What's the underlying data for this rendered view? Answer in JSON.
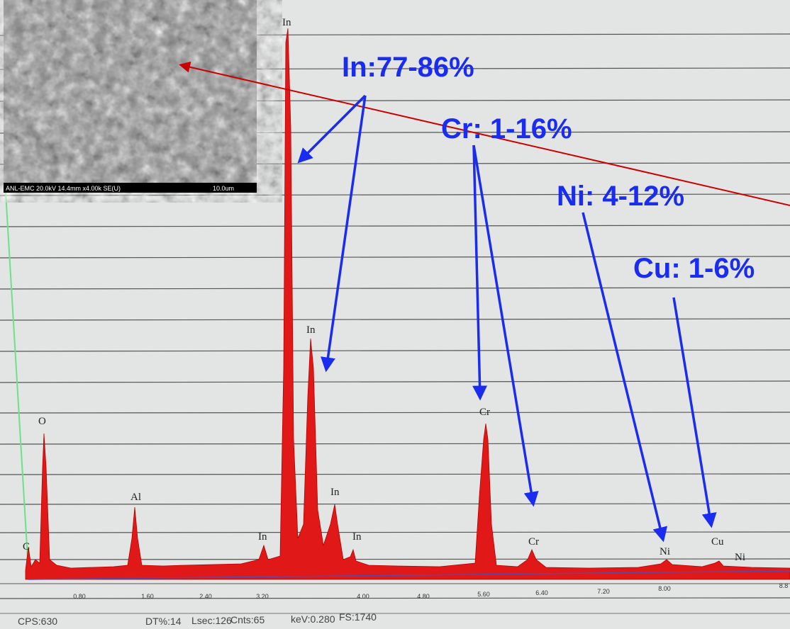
{
  "annotations": [
    "In:77-86%",
    "Cr: 1-16%",
    "Ni: 4-12%",
    "Cu: 1-6%"
  ],
  "peak_labels": [
    "In",
    "In",
    "In",
    "In",
    "In",
    "O",
    "Al",
    "Cr",
    "Cr",
    "Ni",
    "Cu",
    "Ni",
    "C"
  ],
  "x_tick_labels": [
    "0.80",
    "1.60",
    "2.40",
    "3.20",
    "4.00",
    "4.80",
    "5.60",
    "6.40",
    "7.20",
    "8.00",
    "8.8"
  ],
  "status_bar": [
    "CPS:630",
    "DT%:14",
    "Lsec:126",
    "Cnts:65",
    "keV:0.280",
    "FS:1740"
  ],
  "sem_caption": {
    "left": "ANL-EMC 20.0kV 14.4mm x4.00k SE(U)",
    "right": "10.0um"
  }
}
